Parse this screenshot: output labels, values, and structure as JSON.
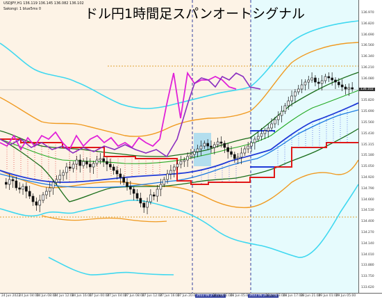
{
  "header": {
    "symbol_info": "USDJPY,H1  136.119 136.145 136.082 136.102",
    "indicator_info": "Sakongi: 1 blue5ms 0",
    "title": "ドル円1時間足スパンオートシグナル"
  },
  "price_axis": {
    "labels": [
      "136.970",
      "136.820",
      "136.690",
      "136.560",
      "136.340",
      "136.210",
      "136.080",
      "135.950",
      "135.820",
      "135.690",
      "135.560",
      "135.430",
      "135.315",
      "135.180",
      "135.050",
      "134.920",
      "134.790",
      "134.660",
      "134.530",
      "134.400",
      "134.270",
      "134.140",
      "134.010",
      "133.880",
      "133.750",
      "133.620"
    ],
    "current_price": "136.102"
  },
  "time_axis": {
    "labels": [
      "24 Jun 2022",
      "24 Jun 04:00",
      "24 Jun 08:00",
      "24 Jun 12:00",
      "24 Jun 16:00",
      "27 Jun 00:00",
      "27 Jun 04:00",
      "27 Jun 08:00",
      "27 Jun 12:00",
      "27 Jun 16:00",
      "27 Jun 20:00",
      "2022.06.27 21:00",
      "28 Jun 01:00",
      "28 Jun 05:00",
      "2022.06.28 09:00",
      "28 Jun 13:00",
      "28 Jun 17:00",
      "28 Jun 21:00",
      "29 Jun 01:00",
      "29 Jun 05:00"
    ],
    "highlighted": [
      11,
      14
    ]
  },
  "colors": {
    "bg_left": "#fdf3e6",
    "bg_right": "#e6fbfd",
    "magenta": "#e020d8",
    "purple": "#8a2ec0",
    "dark_green": "#1b6e1b",
    "green": "#22aa22",
    "blue": "#1f3ad8",
    "mid_blue": "#1a7ae0",
    "red": "#e01818",
    "orange": "#f09a20",
    "cyan": "#3fd8f0"
  }
}
